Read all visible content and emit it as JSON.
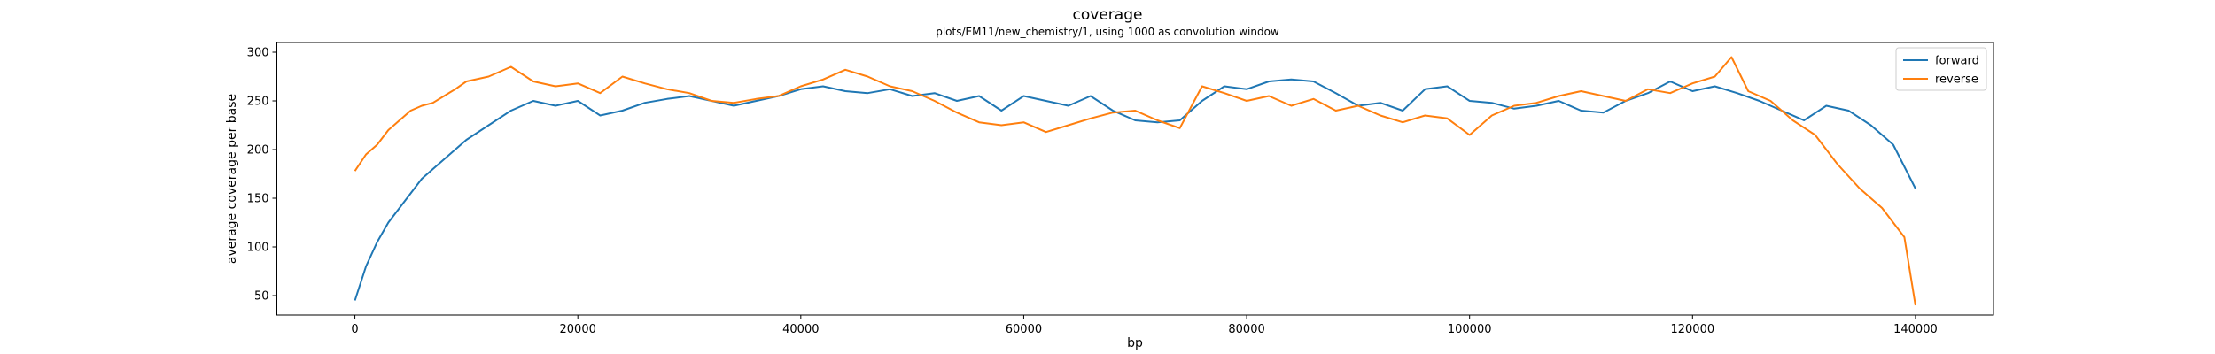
{
  "chart_data": {
    "type": "line",
    "title": "coverage",
    "subtitle": "plots/EM11/new_chemistry/1, using 1000 as convolution window",
    "xlabel": "bp",
    "ylabel": "average coverage per base",
    "xlim": [
      -7000,
      147000
    ],
    "ylim": [
      30,
      310
    ],
    "xticks": [
      0,
      20000,
      40000,
      60000,
      80000,
      100000,
      120000,
      140000
    ],
    "yticks": [
      50,
      100,
      150,
      200,
      250,
      300
    ],
    "grid": false,
    "legend_position": "top-right",
    "series": [
      {
        "name": "forward",
        "color": "#1f77b4",
        "x": [
          0,
          1000,
          2000,
          3000,
          4000,
          5000,
          6000,
          7000,
          8000,
          9000,
          10000,
          12000,
          14000,
          16000,
          18000,
          20000,
          22000,
          24000,
          26000,
          28000,
          30000,
          32000,
          34000,
          36000,
          38000,
          40000,
          42000,
          44000,
          46000,
          48000,
          50000,
          52000,
          54000,
          56000,
          58000,
          60000,
          62000,
          64000,
          66000,
          68000,
          70000,
          72000,
          74000,
          76000,
          78000,
          80000,
          82000,
          84000,
          86000,
          88000,
          90000,
          92000,
          94000,
          96000,
          98000,
          100000,
          102000,
          104000,
          106000,
          108000,
          110000,
          112000,
          114000,
          116000,
          118000,
          120000,
          122000,
          124000,
          126000,
          128000,
          130000,
          132000,
          134000,
          136000,
          138000,
          140000
        ],
        "y": [
          45,
          80,
          105,
          125,
          140,
          155,
          170,
          180,
          190,
          200,
          210,
          225,
          240,
          250,
          245,
          250,
          235,
          240,
          248,
          252,
          255,
          250,
          245,
          250,
          255,
          262,
          265,
          260,
          258,
          262,
          255,
          258,
          250,
          255,
          240,
          255,
          250,
          245,
          255,
          240,
          230,
          228,
          230,
          250,
          265,
          262,
          270,
          272,
          270,
          258,
          245,
          248,
          240,
          262,
          265,
          250,
          248,
          242,
          245,
          250,
          240,
          238,
          250,
          258,
          270,
          260,
          265,
          258,
          250,
          240,
          230,
          245,
          240,
          225,
          205,
          160
        ]
      },
      {
        "name": "reverse",
        "color": "#ff7f0e",
        "x": [
          0,
          1000,
          2000,
          3000,
          4000,
          5000,
          6000,
          7000,
          8000,
          9000,
          10000,
          12000,
          14000,
          16000,
          18000,
          20000,
          22000,
          24000,
          26000,
          28000,
          30000,
          32000,
          34000,
          36000,
          38000,
          40000,
          42000,
          44000,
          46000,
          48000,
          50000,
          52000,
          54000,
          56000,
          58000,
          60000,
          62000,
          64000,
          66000,
          68000,
          70000,
          72000,
          74000,
          76000,
          78000,
          80000,
          82000,
          84000,
          86000,
          88000,
          90000,
          92000,
          94000,
          96000,
          98000,
          100000,
          102000,
          104000,
          106000,
          108000,
          110000,
          112000,
          114000,
          116000,
          118000,
          120000,
          122000,
          123500,
          125000,
          127000,
          129000,
          131000,
          133000,
          135000,
          137000,
          139000,
          140000
        ],
        "y": [
          178,
          195,
          205,
          220,
          230,
          240,
          245,
          248,
          255,
          262,
          270,
          275,
          285,
          270,
          265,
          268,
          258,
          275,
          268,
          262,
          258,
          250,
          248,
          252,
          255,
          265,
          272,
          282,
          275,
          265,
          260,
          250,
          238,
          228,
          225,
          228,
          218,
          225,
          232,
          238,
          240,
          230,
          222,
          265,
          258,
          250,
          255,
          245,
          252,
          240,
          245,
          235,
          228,
          235,
          232,
          215,
          235,
          245,
          248,
          255,
          260,
          255,
          250,
          262,
          258,
          268,
          275,
          295,
          260,
          250,
          230,
          215,
          185,
          160,
          140,
          110,
          40
        ]
      }
    ]
  }
}
